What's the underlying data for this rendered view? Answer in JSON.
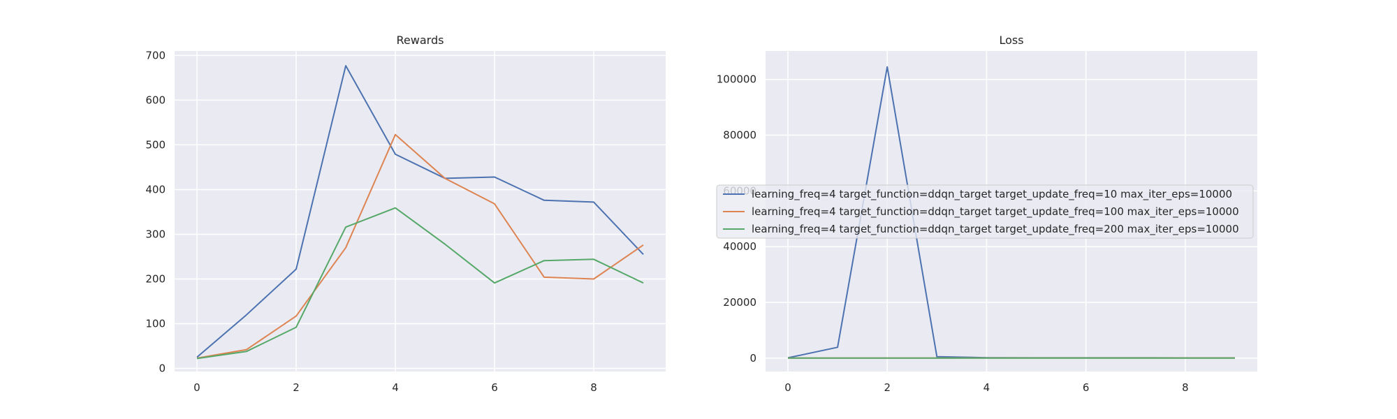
{
  "chart_data": [
    {
      "type": "line",
      "title": "Rewards",
      "xlabel": "",
      "ylabel": "",
      "x": [
        0,
        1,
        2,
        3,
        4,
        5,
        6,
        7,
        8,
        9
      ],
      "xlim": [
        -0.45,
        9.45
      ],
      "ylim": [
        -7,
        710
      ],
      "xticks": [
        0,
        2,
        4,
        6,
        8
      ],
      "yticks": [
        0,
        100,
        200,
        300,
        400,
        500,
        600,
        700
      ],
      "grid": true,
      "series": [
        {
          "name": "learning_freq=4 target_function=ddqn_target target_update_freq=10 max_iter_eps=10000",
          "color": "#4c72b0",
          "values": [
            25,
            120,
            222,
            677,
            479,
            425,
            428,
            376,
            372,
            255
          ]
        },
        {
          "name": "learning_freq=4 target_function=ddqn_target target_update_freq=100 max_iter_eps=10000",
          "color": "#dd8452",
          "values": [
            23,
            42,
            117,
            270,
            523,
            425,
            368,
            204,
            200,
            276
          ]
        },
        {
          "name": "learning_freq=4 target_function=ddqn_target target_update_freq=200 max_iter_eps=10000",
          "color": "#55a868",
          "values": [
            22,
            38,
            92,
            316,
            359,
            278,
            191,
            241,
            244,
            191
          ]
        }
      ]
    },
    {
      "type": "line",
      "title": "Loss",
      "xlabel": "",
      "ylabel": "",
      "x": [
        0,
        1,
        2,
        3,
        4,
        5,
        6,
        7,
        8,
        9
      ],
      "xlim": [
        -0.45,
        9.45
      ],
      "ylim": [
        -4800,
        110200
      ],
      "xticks": [
        0,
        2,
        4,
        6,
        8
      ],
      "yticks": [
        0,
        20000,
        40000,
        60000,
        80000,
        100000
      ],
      "grid": true,
      "legend": "center-right",
      "series": [
        {
          "name": "learning_freq=4 target_function=ddqn_target target_update_freq=10 max_iter_eps=10000",
          "color": "#4c72b0",
          "values": [
            100,
            3900,
            104500,
            500,
            150,
            100,
            100,
            100,
            80,
            80
          ]
        },
        {
          "name": "learning_freq=4 target_function=ddqn_target target_update_freq=100 max_iter_eps=10000",
          "color": "#dd8452",
          "values": [
            10,
            20,
            30,
            40,
            50,
            50,
            50,
            50,
            50,
            50
          ]
        },
        {
          "name": "learning_freq=4 target_function=ddqn_target target_update_freq=200 max_iter_eps=10000",
          "color": "#55a868",
          "values": [
            10,
            20,
            20,
            30,
            30,
            30,
            30,
            30,
            30,
            30
          ]
        }
      ]
    }
  ],
  "style": {
    "plot_bg": "#eaeaf2",
    "grid_color": "#ffffff",
    "text_color": "#262626",
    "legend_bg": "#eaeaf2",
    "legend_edge": "#cccccc"
  }
}
